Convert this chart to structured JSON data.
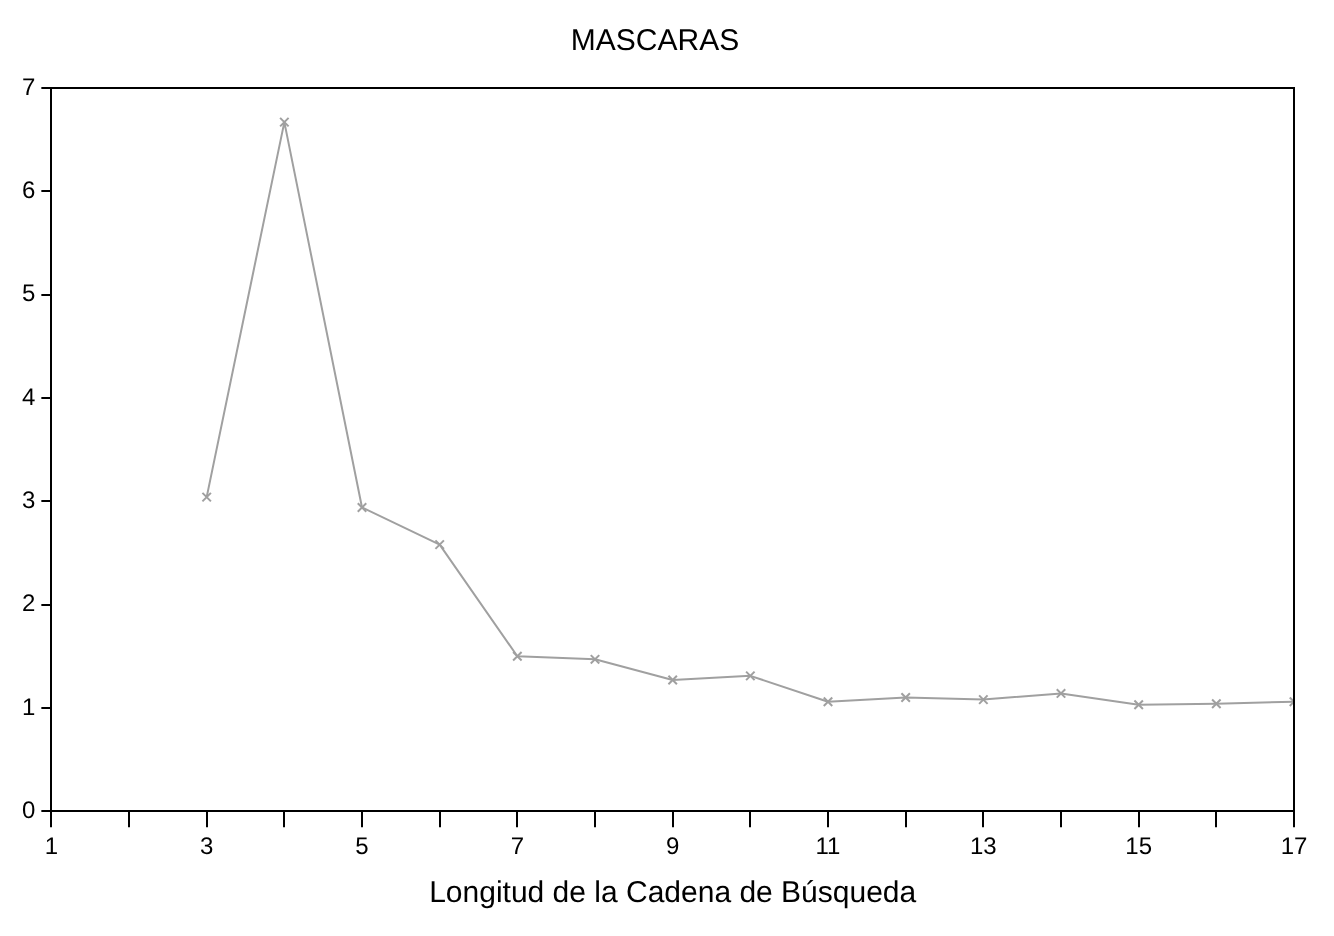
{
  "chart_data": {
    "type": "line",
    "title": "MASCARAS",
    "xlabel": "Longitud de la Cadena de Búsqueda",
    "x": [
      3,
      4,
      5,
      6,
      7,
      8,
      9,
      10,
      11,
      12,
      13,
      14,
      15,
      16,
      17
    ],
    "series": [
      {
        "color": "#a0a0a0",
        "values": [
          3.04,
          6.67,
          2.94,
          2.58,
          1.5,
          1.47,
          1.27,
          1.31,
          1.06,
          1.1,
          1.08,
          1.14,
          1.03,
          1.04,
          1.06
        ]
      }
    ],
    "xlim": [
      1,
      17
    ],
    "xticks": [
      1,
      {
        "value": 2,
        "label": null
      },
      3,
      {
        "value": 4,
        "label": null
      },
      5,
      {
        "value": 6,
        "label": null
      },
      7,
      {
        "value": 8,
        "label": null
      },
      9,
      {
        "value": 10,
        "label": null
      },
      11,
      {
        "value": 12,
        "label": null
      },
      13,
      {
        "value": 14,
        "label": null
      },
      15,
      {
        "value": 16,
        "label": null
      },
      17
    ],
    "ylim": [
      0,
      7
    ],
    "yticks": [
      0,
      1,
      2,
      3,
      4,
      5,
      6,
      7
    ],
    "grid": false,
    "legend": false,
    "marker": "cross",
    "line_style": "solid"
  }
}
